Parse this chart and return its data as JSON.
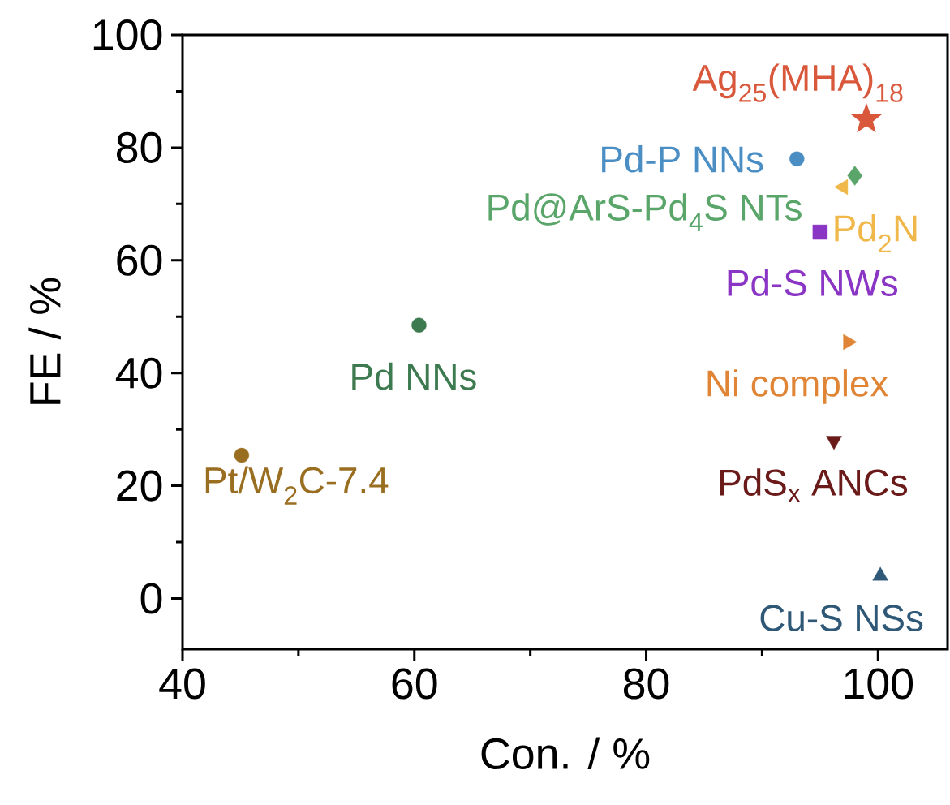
{
  "chart_data": {
    "type": "scatter",
    "xlabel": "Con. / %",
    "ylabel": "FE / %",
    "xlim": [
      40,
      106
    ],
    "ylim": [
      -9,
      100
    ],
    "xticks": [
      40,
      {
        "value": 50,
        "label": null
      },
      60,
      {
        "value": 70,
        "label": null
      },
      80,
      {
        "value": 90,
        "label": null
      },
      100
    ],
    "yticks": [
      0,
      {
        "value": 10,
        "label": null
      },
      20,
      {
        "value": 30,
        "label": null
      },
      40,
      {
        "value": 50,
        "label": null
      },
      60,
      {
        "value": 70,
        "label": null
      },
      80,
      {
        "value": 90,
        "label": null
      },
      100
    ],
    "grid": false,
    "legend": false,
    "series": [
      {
        "name": "Ag$_{25}$(MHA)$_{18}$",
        "color": "#d9573a",
        "marker": "star",
        "x": [
          99
        ],
        "values": [
          85
        ]
      },
      {
        "name": "Pd-P NNs",
        "color": "#4a8ec4",
        "marker": "circle",
        "x": [
          93
        ],
        "values": [
          78
        ]
      },
      {
        "name": "Pd@ArS-Pd$_{4}$S NTs",
        "color": "#5aa56a",
        "marker": "diamond",
        "x": [
          98
        ],
        "values": [
          75
        ]
      },
      {
        "name": "Pd$_{2}$N",
        "color": "#f0b84a",
        "marker": "triangle",
        "x": [
          97
        ],
        "values": [
          73
        ]
      },
      {
        "name": "Pd-S NWs",
        "color": "#8a35c4",
        "marker": "square",
        "x": [
          95
        ],
        "values": [
          65
        ]
      },
      {
        "name": "Ni complex",
        "color": "#e08535",
        "marker": "triangle",
        "x": [
          97.4
        ],
        "values": [
          45.5
        ]
      },
      {
        "name": "PdS$_{x}$ ANCs",
        "color": "#6b1a1a",
        "marker": "triangle",
        "x": [
          96.2
        ],
        "values": [
          28
        ]
      },
      {
        "name": "Cu-S NSs",
        "color": "#2f5877",
        "marker": "triangle",
        "x": [
          100.2
        ],
        "values": [
          4
        ]
      },
      {
        "name": "Pd NNs",
        "color": "#3d7a50",
        "marker": "circle",
        "x": [
          60.4
        ],
        "values": [
          48.5
        ]
      },
      {
        "name": "Pt/W$_{2}$C-7.4",
        "color": "#9a6e20",
        "marker": "circle",
        "x": [
          45.1
        ],
        "values": [
          25.4
        ]
      }
    ]
  }
}
